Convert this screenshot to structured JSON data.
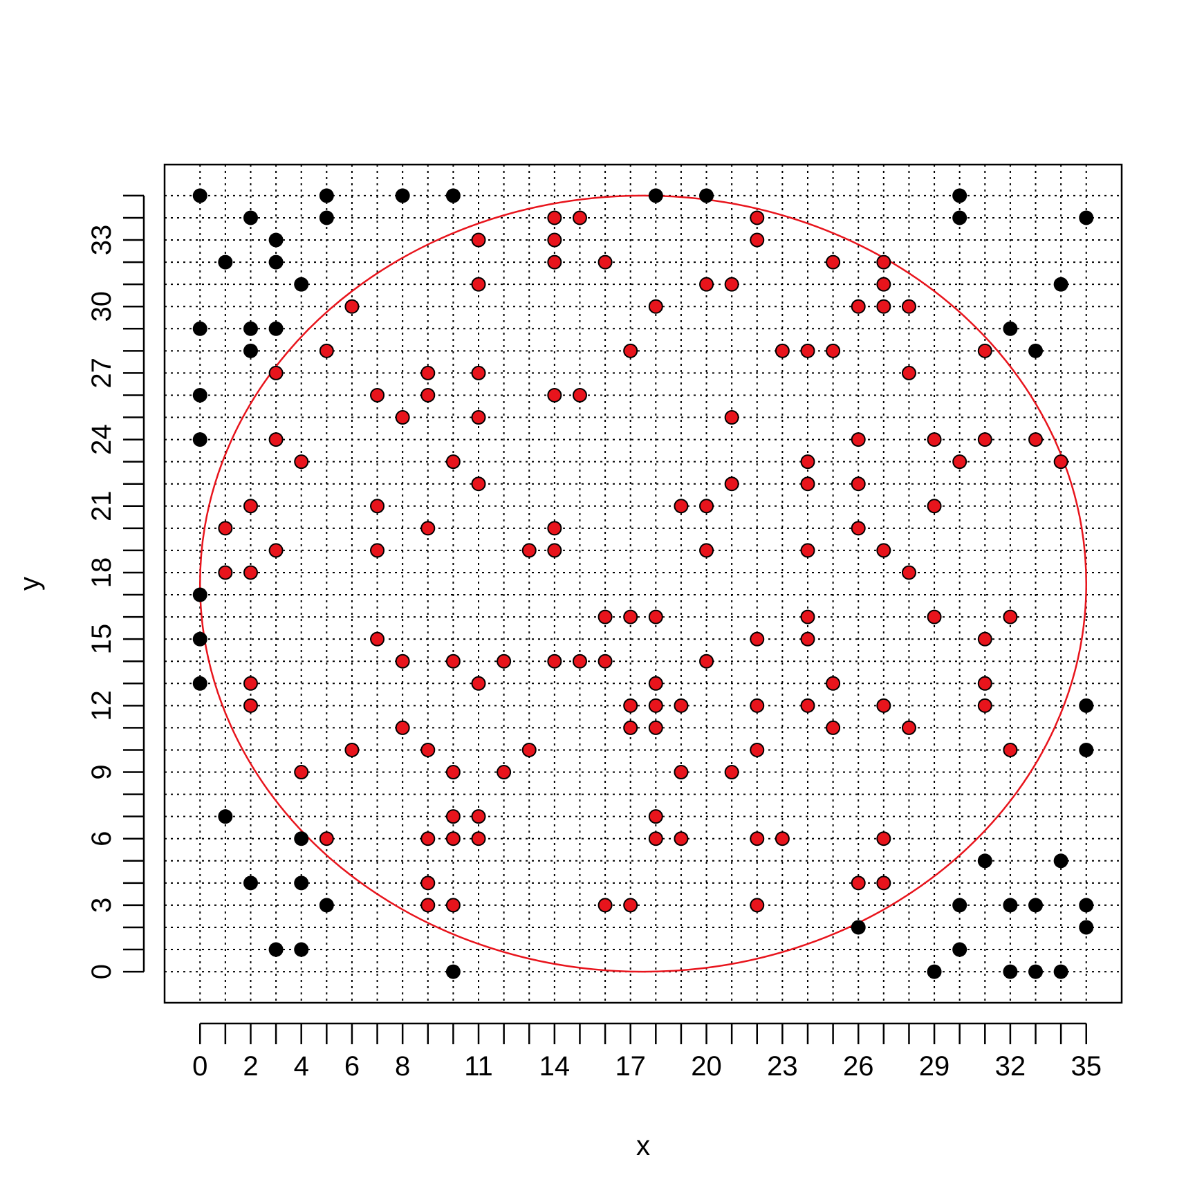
{
  "chart_data": {
    "type": "scatter",
    "title": "",
    "xlabel": "x",
    "ylabel": "y",
    "xlim": [
      -1.4,
      36.4
    ],
    "ylim": [
      -1.4,
      36.4
    ],
    "grid": true,
    "grid_style": "dotted",
    "x_tick_labels": [
      "0",
      "2",
      "4",
      "6",
      "8",
      "11",
      "14",
      "17",
      "20",
      "23",
      "26",
      "29",
      "32",
      "35"
    ],
    "y_tick_labels": [
      "0",
      "3",
      "6",
      "9",
      "12",
      "15",
      "18",
      "21",
      "24",
      "27",
      "30",
      "33"
    ],
    "circle": {
      "cx": 17.5,
      "cy": 17.5,
      "r": 17.5,
      "color": "#e8141c"
    },
    "colors": {
      "outside": "#000000",
      "inside": "#e8141c",
      "outline": "#000000"
    },
    "series": [
      {
        "points": [
          [
            0,
            35
          ],
          [
            5,
            35
          ],
          [
            8,
            35
          ],
          [
            10,
            35
          ],
          [
            18,
            35
          ],
          [
            20,
            35
          ],
          [
            30,
            35
          ],
          [
            2,
            34
          ],
          [
            5,
            34
          ],
          [
            30,
            34
          ],
          [
            35,
            34
          ],
          [
            3,
            33
          ],
          [
            1,
            32
          ],
          [
            3,
            32
          ],
          [
            4,
            31
          ],
          [
            34,
            31
          ],
          [
            0,
            29
          ],
          [
            2,
            29
          ],
          [
            3,
            29
          ],
          [
            32,
            29
          ],
          [
            2,
            28
          ],
          [
            33,
            28
          ],
          [
            0,
            26
          ],
          [
            0,
            24
          ],
          [
            0,
            17
          ],
          [
            0,
            15
          ],
          [
            0,
            13
          ],
          [
            35,
            12
          ],
          [
            35,
            10
          ],
          [
            1,
            7
          ],
          [
            4,
            6
          ],
          [
            31,
            5
          ],
          [
            34,
            5
          ],
          [
            2,
            4
          ],
          [
            4,
            4
          ],
          [
            5,
            3
          ],
          [
            30,
            3
          ],
          [
            32,
            3
          ],
          [
            33,
            3
          ],
          [
            35,
            3
          ],
          [
            26,
            2
          ],
          [
            35,
            2
          ],
          [
            3,
            1
          ],
          [
            4,
            1
          ],
          [
            30,
            1
          ],
          [
            10,
            0
          ],
          [
            29,
            0
          ],
          [
            32,
            0
          ],
          [
            33,
            0
          ],
          [
            34,
            0
          ]
        ]
      },
      {
        "points": [
          [
            14,
            34
          ],
          [
            15,
            34
          ],
          [
            22,
            34
          ],
          [
            11,
            33
          ],
          [
            14,
            33
          ],
          [
            22,
            33
          ],
          [
            14,
            32
          ],
          [
            16,
            32
          ],
          [
            25,
            32
          ],
          [
            27,
            32
          ],
          [
            11,
            31
          ],
          [
            20,
            31
          ],
          [
            21,
            31
          ],
          [
            27,
            31
          ],
          [
            6,
            30
          ],
          [
            18,
            30
          ],
          [
            26,
            30
          ],
          [
            27,
            30
          ],
          [
            28,
            30
          ],
          [
            5,
            28
          ],
          [
            17,
            28
          ],
          [
            23,
            28
          ],
          [
            24,
            28
          ],
          [
            25,
            28
          ],
          [
            31,
            28
          ],
          [
            3,
            27
          ],
          [
            9,
            27
          ],
          [
            11,
            27
          ],
          [
            28,
            27
          ],
          [
            7,
            26
          ],
          [
            9,
            26
          ],
          [
            14,
            26
          ],
          [
            15,
            26
          ],
          [
            8,
            25
          ],
          [
            11,
            25
          ],
          [
            21,
            25
          ],
          [
            3,
            24
          ],
          [
            26,
            24
          ],
          [
            29,
            24
          ],
          [
            31,
            24
          ],
          [
            33,
            24
          ],
          [
            4,
            23
          ],
          [
            10,
            23
          ],
          [
            24,
            23
          ],
          [
            30,
            23
          ],
          [
            34,
            23
          ],
          [
            11,
            22
          ],
          [
            21,
            22
          ],
          [
            24,
            22
          ],
          [
            26,
            22
          ],
          [
            2,
            21
          ],
          [
            7,
            21
          ],
          [
            19,
            21
          ],
          [
            20,
            21
          ],
          [
            29,
            21
          ],
          [
            1,
            20
          ],
          [
            9,
            20
          ],
          [
            14,
            20
          ],
          [
            26,
            20
          ],
          [
            3,
            19
          ],
          [
            7,
            19
          ],
          [
            13,
            19
          ],
          [
            14,
            19
          ],
          [
            20,
            19
          ],
          [
            24,
            19
          ],
          [
            27,
            19
          ],
          [
            1,
            18
          ],
          [
            2,
            18
          ],
          [
            28,
            18
          ],
          [
            16,
            16
          ],
          [
            17,
            16
          ],
          [
            18,
            16
          ],
          [
            24,
            16
          ],
          [
            29,
            16
          ],
          [
            32,
            16
          ],
          [
            7,
            15
          ],
          [
            22,
            15
          ],
          [
            24,
            15
          ],
          [
            31,
            15
          ],
          [
            8,
            14
          ],
          [
            10,
            14
          ],
          [
            12,
            14
          ],
          [
            14,
            14
          ],
          [
            15,
            14
          ],
          [
            16,
            14
          ],
          [
            20,
            14
          ],
          [
            2,
            13
          ],
          [
            11,
            13
          ],
          [
            18,
            13
          ],
          [
            25,
            13
          ],
          [
            31,
            13
          ],
          [
            2,
            12
          ],
          [
            17,
            12
          ],
          [
            18,
            12
          ],
          [
            19,
            12
          ],
          [
            22,
            12
          ],
          [
            24,
            12
          ],
          [
            27,
            12
          ],
          [
            31,
            12
          ],
          [
            8,
            11
          ],
          [
            17,
            11
          ],
          [
            18,
            11
          ],
          [
            25,
            11
          ],
          [
            28,
            11
          ],
          [
            6,
            10
          ],
          [
            9,
            10
          ],
          [
            13,
            10
          ],
          [
            22,
            10
          ],
          [
            32,
            10
          ],
          [
            4,
            9
          ],
          [
            10,
            9
          ],
          [
            12,
            9
          ],
          [
            19,
            9
          ],
          [
            21,
            9
          ],
          [
            10,
            7
          ],
          [
            11,
            7
          ],
          [
            18,
            7
          ],
          [
            5,
            6
          ],
          [
            9,
            6
          ],
          [
            10,
            6
          ],
          [
            11,
            6
          ],
          [
            18,
            6
          ],
          [
            19,
            6
          ],
          [
            22,
            6
          ],
          [
            23,
            6
          ],
          [
            27,
            6
          ],
          [
            9,
            4
          ],
          [
            26,
            4
          ],
          [
            27,
            4
          ],
          [
            9,
            3
          ],
          [
            10,
            3
          ],
          [
            16,
            3
          ],
          [
            17,
            3
          ],
          [
            22,
            3
          ]
        ]
      }
    ]
  }
}
